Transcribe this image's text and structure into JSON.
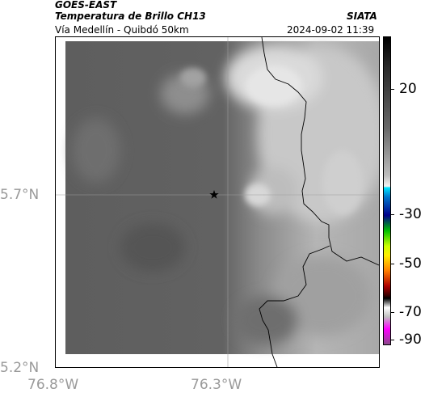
{
  "header": {
    "satellite": "GOES-EAST",
    "product": "Temperatura de Brillo CH13",
    "region": "Vía Medellín - Quibdó 50km",
    "organization": "SIATA",
    "timestamp": "2024-09-02 11:39"
  },
  "map": {
    "lat_labels": [
      "5.7°N",
      "5.2°N"
    ],
    "lon_labels": [
      "76.8°W",
      "76.3°W"
    ],
    "marker_icon": "star-icon",
    "boundary_icon": "department-border-line"
  },
  "colorbar": {
    "labels": [
      "20",
      "-30",
      "-50",
      "-70",
      "-90"
    ],
    "scheme": "grayscale warm-to-cold with color enhancement below -20"
  }
}
